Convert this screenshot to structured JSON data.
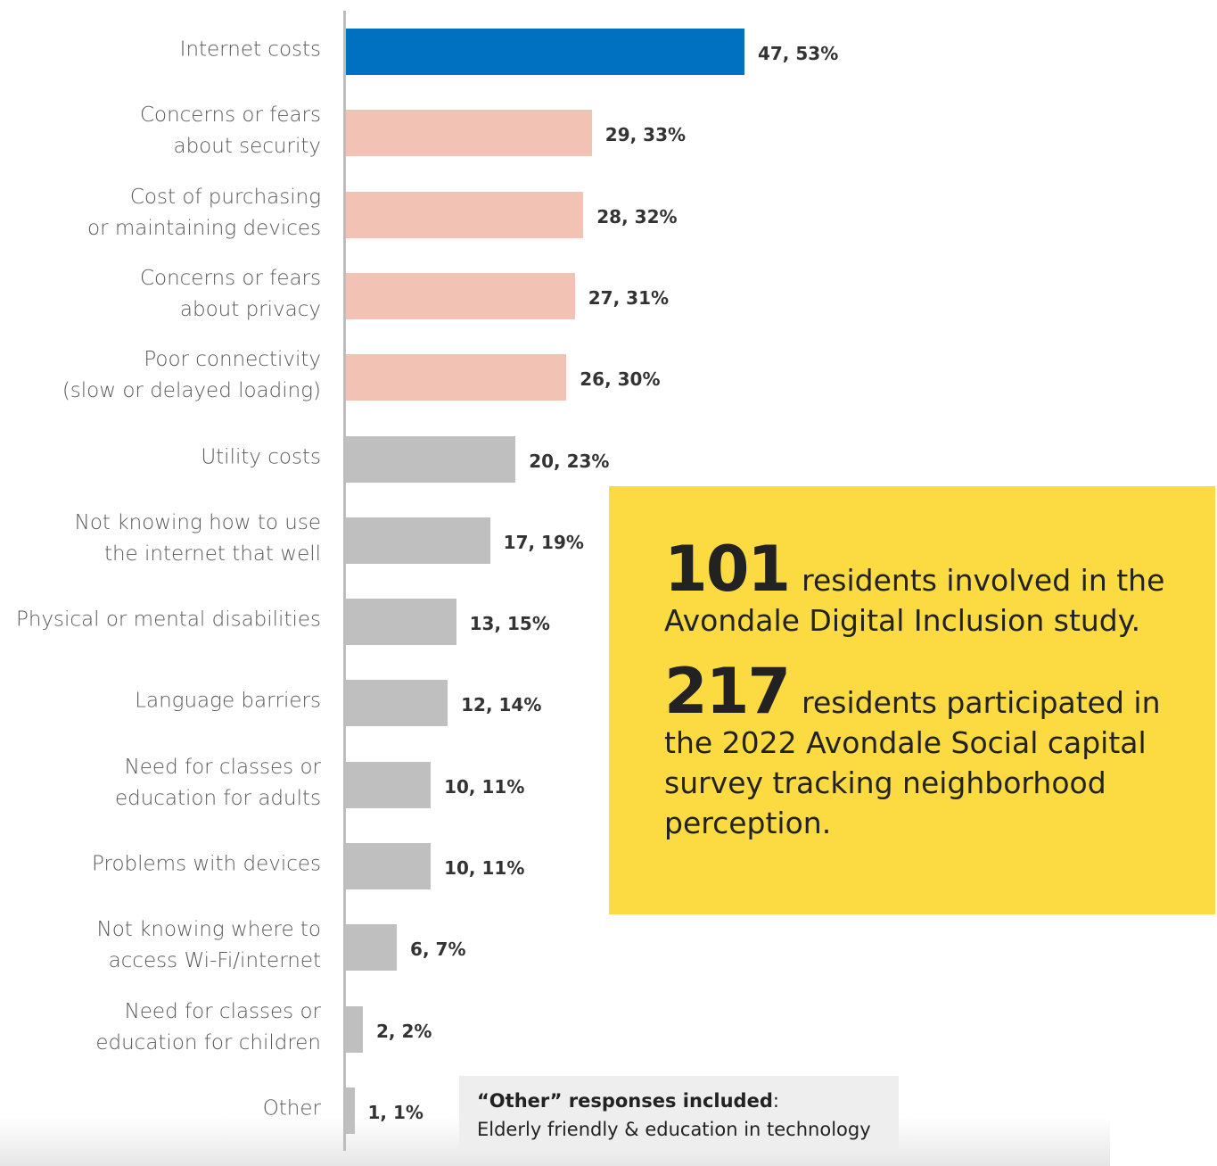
{
  "chart_data": {
    "type": "bar",
    "orientation": "horizontal",
    "categories": [
      "Internet costs",
      "Concerns or fears\nabout security",
      "Cost of purchasing\nor maintaining devices",
      "Concerns or fears\nabout privacy",
      "Poor connectivity\n(slow or delayed loading)",
      "Utility costs",
      "Not knowing how to use\nthe internet that well",
      "Physical or mental disabilities",
      "Language barriers",
      "Need for classes or\neducation for adults",
      "Problems with devices",
      "Not knowing where to\naccess Wi-Fi/internet",
      "Need for classes or\neducation for children",
      "Other"
    ],
    "values": [
      47,
      29,
      28,
      27,
      26,
      20,
      17,
      13,
      12,
      10,
      10,
      6,
      2,
      1
    ],
    "value_labels": [
      "47, 53%",
      "29, 33%",
      "28, 32%",
      "27, 31%",
      "26, 30%",
      "20, 23%",
      "17, 19%",
      "13, 15%",
      "12, 14%",
      "10, 11%",
      "10, 11%",
      "6, 7%",
      "2, 2%",
      "1, 1%"
    ],
    "colors": [
      "#0070c0",
      "#f2c2b4",
      "#f2c2b4",
      "#f2c2b4",
      "#f2c2b4",
      "#bfbfbf",
      "#bfbfbf",
      "#bfbfbf",
      "#bfbfbf",
      "#bfbfbf",
      "#bfbfbf",
      "#bfbfbf",
      "#bfbfbf",
      "#bfbfbf"
    ],
    "xlim": [
      0,
      50
    ],
    "annotations": [
      {
        "number": "101",
        "text": "residents involved in the Avondale Digital Inclusion study."
      },
      {
        "number": "217",
        "text": "residents participated in the 2022 Avondale Social capital survey tracking neighborhood perception."
      }
    ],
    "note": {
      "title": "“Other” responses included",
      "separator": ":",
      "text": "Elderly friendly & education in technology"
    }
  }
}
